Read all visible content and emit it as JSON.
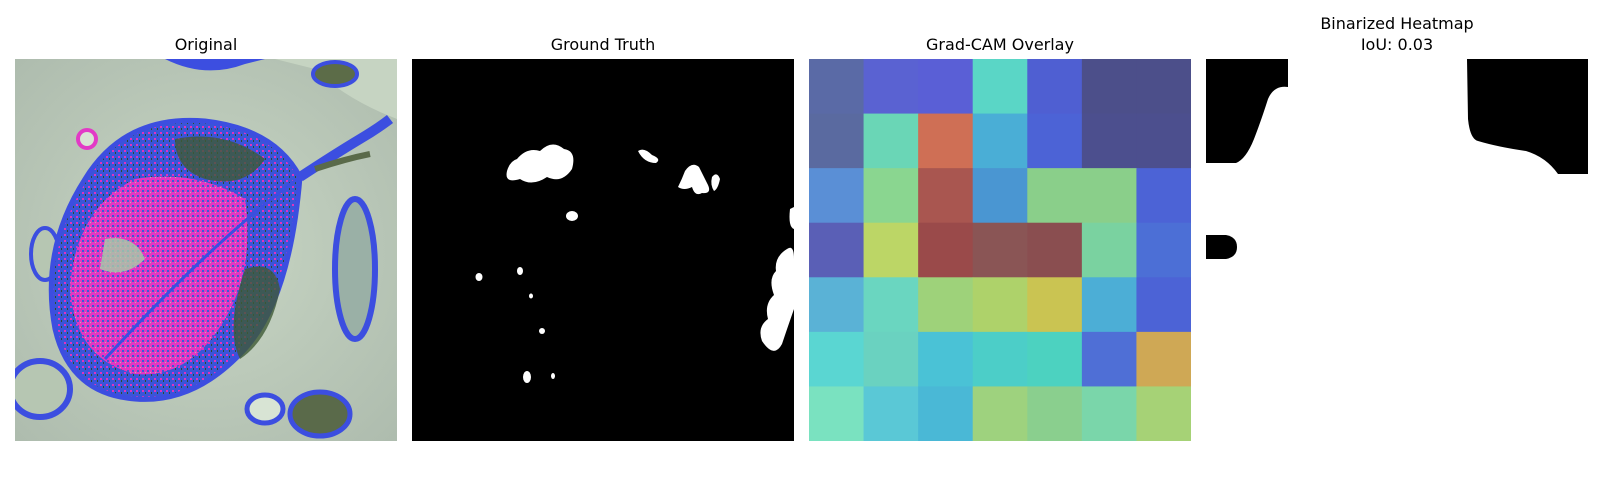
{
  "panels": {
    "original": {
      "title": "Original"
    },
    "ground_truth": {
      "title": "Ground Truth"
    },
    "gradcam": {
      "title": "Grad-CAM Overlay",
      "grid_colors": [
        [
          "#5a6aa6",
          "#5a62d2",
          "#5a5fd6",
          "#5ad6c6",
          "#4f5fd2",
          "#4c4f8a",
          "#4c4f8a"
        ],
        [
          "#5a6aa0",
          "#6ad6b6",
          "#cf6f55",
          "#4aaed6",
          "#4c63d6",
          "#4c4f8e",
          "#4c4f8e"
        ],
        [
          "#5a8fd6",
          "#8ad690",
          "#a95650",
          "#4a96d2",
          "#8acf8a",
          "#8acf8a",
          "#4c63d6"
        ],
        [
          "#5a5fb6",
          "#bcd666",
          "#9a4a4a",
          "#8a5555",
          "#8a4e50",
          "#7ad2a0",
          "#4c6fd6"
        ],
        [
          "#5ab2d6",
          "#6ad6c0",
          "#9ed27a",
          "#aed26a",
          "#cac452",
          "#4caed6",
          "#4c63d6"
        ],
        [
          "#5ad6d2",
          "#6ad2c0",
          "#4ac2d6",
          "#4ccec8",
          "#4cd2c0",
          "#4f6fd6",
          "#cfa855"
        ],
        [
          "#7ae2c0",
          "#5ac8d6",
          "#4ab8d6",
          "#9ed27e",
          "#8acf8e",
          "#7ad6aa",
          "#a6d276"
        ]
      ]
    },
    "binarized": {
      "title": "Binarized Heatmap\nIoU: 0.03"
    }
  },
  "colors": {
    "mask_foreground": "#ffffff",
    "mask_background": "#000000"
  }
}
